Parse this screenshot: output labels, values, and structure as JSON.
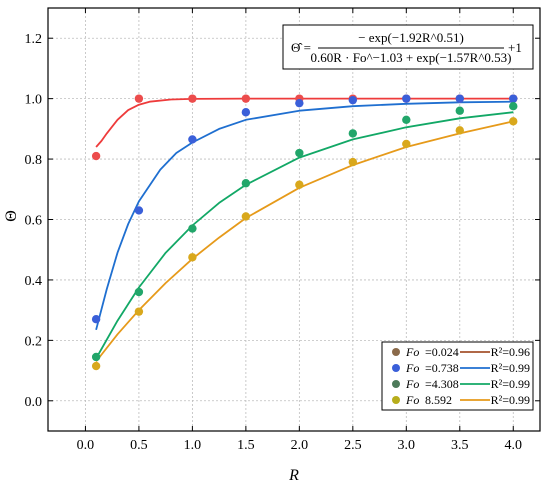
{
  "chart_data": {
    "type": "scatter",
    "xlabel": "R",
    "ylabel": "Θ",
    "xlim": [
      -0.35,
      4.25
    ],
    "ylim": [
      -0.1,
      1.3
    ],
    "x_ticks": [
      "0.0",
      "0.5",
      "1.0",
      "1.5",
      "2.0",
      "2.5",
      "3.0",
      "3.5",
      "4.0"
    ],
    "y_ticks": [
      "0.0",
      "0.2",
      "0.4",
      "0.6",
      "0.8",
      "1.0",
      "1.2"
    ],
    "grid": true,
    "legend_position": "bottom-right",
    "formula": {
      "lhs": "Θ̂ =",
      "numerator": "− exp(−1.92R^0.51)",
      "denominator": "0.60R · Fo^−1.03 + exp(−1.57R^0.53)",
      "suffix": "+1"
    },
    "x": [
      0.1,
      0.5,
      1.0,
      1.5,
      2.0,
      2.5,
      3.0,
      3.5,
      4.0
    ],
    "series": [
      {
        "fo_label": "Fo",
        "fo_value": "=0.024",
        "r2_label": "R²=0.96",
        "marker_color": "#ec4c4c",
        "line_color": "#ee3b3b",
        "legend_marker_color": "#8a6a4a",
        "legend_line_color": "#a5522d",
        "values": [
          0.81,
          1.0,
          1.0,
          1.0,
          1.0,
          1.0,
          1.0,
          1.0,
          1.0
        ],
        "fit": [
          [
            0.1,
            0.84
          ],
          [
            0.15,
            0.86
          ],
          [
            0.2,
            0.885
          ],
          [
            0.3,
            0.93
          ],
          [
            0.4,
            0.962
          ],
          [
            0.5,
            0.98
          ],
          [
            0.6,
            0.99
          ],
          [
            0.8,
            0.997
          ],
          [
            1.0,
            0.999
          ],
          [
            1.5,
            1.0
          ],
          [
            2.0,
            1.0
          ],
          [
            4.0,
            1.0
          ]
        ]
      },
      {
        "fo_label": "Fo",
        "fo_value": "=0.738",
        "r2_label": "R²=0.99",
        "marker_color": "#3a5fd9",
        "line_color": "#1f6fd0",
        "legend_marker_color": "#3a5fd9",
        "legend_line_color": "#1f6fd0",
        "values": [
          0.27,
          0.63,
          0.865,
          0.955,
          0.985,
          0.995,
          1.0,
          1.0,
          1.0
        ],
        "fit": [
          [
            0.1,
            0.235
          ],
          [
            0.2,
            0.37
          ],
          [
            0.3,
            0.49
          ],
          [
            0.4,
            0.585
          ],
          [
            0.5,
            0.66
          ],
          [
            0.7,
            0.765
          ],
          [
            0.85,
            0.82
          ],
          [
            1.0,
            0.855
          ],
          [
            1.25,
            0.9
          ],
          [
            1.5,
            0.93
          ],
          [
            2.0,
            0.96
          ],
          [
            2.5,
            0.975
          ],
          [
            3.0,
            0.983
          ],
          [
            3.5,
            0.988
          ],
          [
            4.0,
            0.99
          ]
        ]
      },
      {
        "fo_label": "Fo",
        "fo_value": "=4.308",
        "r2_label": "R²=0.99",
        "marker_color": "#22a66a",
        "line_color": "#12a866",
        "legend_marker_color": "#4d7a5a",
        "legend_line_color": "#12a866",
        "values": [
          0.145,
          0.36,
          0.57,
          0.72,
          0.82,
          0.885,
          0.93,
          0.96,
          0.975
        ],
        "fit": [
          [
            0.1,
            0.14
          ],
          [
            0.3,
            0.265
          ],
          [
            0.5,
            0.375
          ],
          [
            0.75,
            0.49
          ],
          [
            1.0,
            0.58
          ],
          [
            1.25,
            0.655
          ],
          [
            1.5,
            0.715
          ],
          [
            2.0,
            0.805
          ],
          [
            2.5,
            0.865
          ],
          [
            3.0,
            0.905
          ],
          [
            3.5,
            0.935
          ],
          [
            4.0,
            0.955
          ]
        ]
      },
      {
        "fo_label": "Fo",
        "fo_value": "8.592",
        "r2_label": "R²=0.99",
        "marker_color": "#d9a81c",
        "line_color": "#e69a1a",
        "legend_marker_color": "#b7ad1b",
        "legend_line_color": "#e69a1a",
        "values": [
          0.115,
          0.295,
          0.475,
          0.61,
          0.715,
          0.79,
          0.85,
          0.895,
          0.925
        ],
        "fit": [
          [
            0.1,
            0.13
          ],
          [
            0.3,
            0.22
          ],
          [
            0.5,
            0.3
          ],
          [
            0.75,
            0.39
          ],
          [
            1.0,
            0.47
          ],
          [
            1.25,
            0.54
          ],
          [
            1.5,
            0.605
          ],
          [
            2.0,
            0.705
          ],
          [
            2.5,
            0.78
          ],
          [
            3.0,
            0.84
          ],
          [
            3.5,
            0.885
          ],
          [
            4.0,
            0.925
          ]
        ]
      }
    ]
  }
}
